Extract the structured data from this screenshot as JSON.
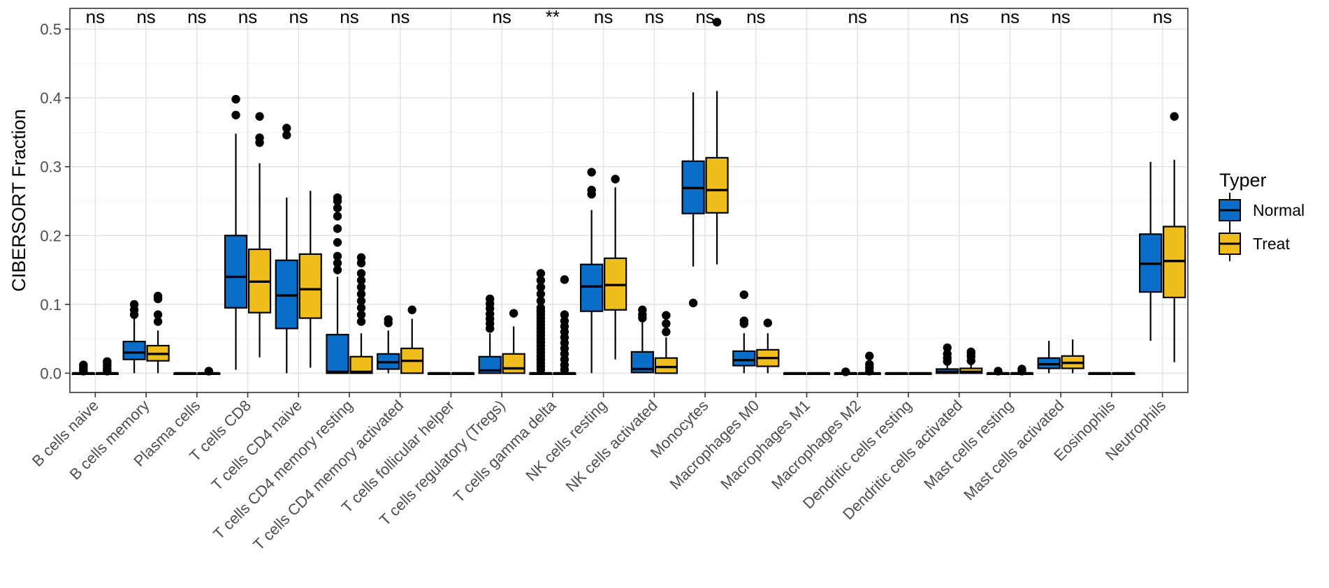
{
  "chart_data": {
    "type": "box",
    "title": "",
    "xlabel": "",
    "ylabel": "CIBERSORT Fraction",
    "ylim": [
      -0.028,
      0.53
    ],
    "yticks": [
      0.0,
      0.1,
      0.2,
      0.3,
      0.4,
      0.5
    ],
    "ytick_labels": [
      "0.0",
      "0.1",
      "0.2",
      "0.3",
      "0.4",
      "0.5"
    ],
    "grid": true,
    "legend": {
      "title": "Typer",
      "position": "right",
      "entries": [
        {
          "name": "Normal",
          "color": "#0a6ec8"
        },
        {
          "name": "Treat",
          "color": "#efbe1c"
        }
      ]
    },
    "categories": [
      "B cells naive",
      "B cells memory",
      "Plasma cells",
      "T cells CD8",
      "T cells CD4 naive",
      "T cells CD4 memory resting",
      "T cells CD4 memory activated",
      "T cells follicular helper",
      "T cells regulatory (Tregs)",
      "T cells gamma delta",
      "NK cells resting",
      "NK cells activated",
      "Monocytes",
      "Macrophages M0",
      "Macrophages M1",
      "Macrophages M2",
      "Dendritic cells resting",
      "Dendritic cells activated",
      "Mast cells resting",
      "Mast cells activated",
      "Eosinophils",
      "Neutrophils"
    ],
    "significance": [
      "ns",
      "ns",
      "ns",
      "ns",
      "ns",
      "ns",
      "ns",
      "",
      "ns",
      "**",
      "ns",
      "ns",
      "ns",
      "ns",
      "",
      "ns",
      "",
      "ns",
      "ns",
      "ns",
      "",
      "ns"
    ],
    "series": [
      {
        "name": "Normal",
        "color": "#0a6ec8",
        "boxes": [
          {
            "q1": 0.0,
            "med": 0.0,
            "q3": 0.0,
            "lo": 0.0,
            "hi": 0.0,
            "out": [
              0.003,
              0.006,
              0.009,
              0.012
            ]
          },
          {
            "q1": 0.02,
            "med": 0.03,
            "q3": 0.046,
            "lo": 0.0,
            "hi": 0.08,
            "out": [
              0.085,
              0.092,
              0.1
            ]
          },
          {
            "q1": 0.0,
            "med": 0.0,
            "q3": 0.0,
            "lo": 0.0,
            "hi": 0.0,
            "out": []
          },
          {
            "q1": 0.095,
            "med": 0.14,
            "q3": 0.2,
            "lo": 0.005,
            "hi": 0.348,
            "out": [
              0.375,
              0.398
            ]
          },
          {
            "q1": 0.065,
            "med": 0.113,
            "q3": 0.164,
            "lo": 0.0,
            "hi": 0.255,
            "out": [
              0.346,
              0.356
            ]
          },
          {
            "q1": 0.0,
            "med": 0.002,
            "q3": 0.056,
            "lo": 0.0,
            "hi": 0.14,
            "out": [
              0.15,
              0.16,
              0.17,
              0.19,
              0.21,
              0.228,
              0.24,
              0.25,
              0.255
            ]
          },
          {
            "q1": 0.006,
            "med": 0.016,
            "q3": 0.028,
            "lo": 0.0,
            "hi": 0.062,
            "out": [
              0.073,
              0.078
            ]
          },
          {
            "q1": 0.0,
            "med": 0.0,
            "q3": 0.0,
            "lo": 0.0,
            "hi": 0.0,
            "out": []
          },
          {
            "q1": 0.0,
            "med": 0.004,
            "q3": 0.024,
            "lo": 0.0,
            "hi": 0.058,
            "out": [
              0.065,
              0.072,
              0.079,
              0.086,
              0.094,
              0.101,
              0.108
            ]
          },
          {
            "q1": 0.0,
            "med": 0.0,
            "q3": 0.0,
            "lo": 0.0,
            "hi": 0.0,
            "out": [
              0.005,
              0.01,
              0.015,
              0.02,
              0.025,
              0.03,
              0.035,
              0.04,
              0.045,
              0.05,
              0.055,
              0.06,
              0.065,
              0.07,
              0.075,
              0.08,
              0.085,
              0.09,
              0.095,
              0.105,
              0.115,
              0.125,
              0.135,
              0.145
            ]
          },
          {
            "q1": 0.09,
            "med": 0.126,
            "q3": 0.158,
            "lo": 0.0,
            "hi": 0.237,
            "out": [
              0.26,
              0.266,
              0.292
            ]
          },
          {
            "q1": 0.001,
            "med": 0.006,
            "q3": 0.031,
            "lo": 0.0,
            "hi": 0.076,
            "out": [
              0.08,
              0.085,
              0.092
            ]
          },
          {
            "q1": 0.232,
            "med": 0.269,
            "q3": 0.308,
            "lo": 0.155,
            "hi": 0.408,
            "out": [
              0.102
            ]
          },
          {
            "q1": 0.011,
            "med": 0.019,
            "q3": 0.032,
            "lo": 0.0,
            "hi": 0.058,
            "out": [
              0.072,
              0.076,
              0.114
            ]
          },
          {
            "q1": 0.0,
            "med": 0.0,
            "q3": 0.0,
            "lo": 0.0,
            "hi": 0.0,
            "out": []
          },
          {
            "q1": 0.0,
            "med": 0.0,
            "q3": 0.0,
            "lo": 0.0,
            "hi": 0.0,
            "out": [
              0.002
            ]
          },
          {
            "q1": 0.0,
            "med": 0.0,
            "q3": 0.0,
            "lo": 0.0,
            "hi": 0.0,
            "out": []
          },
          {
            "q1": 0.0,
            "med": 0.002,
            "q3": 0.006,
            "lo": 0.0,
            "hi": 0.013,
            "out": [
              0.017,
              0.022,
              0.028,
              0.037
            ]
          },
          {
            "q1": 0.0,
            "med": 0.0,
            "q3": 0.0,
            "lo": 0.0,
            "hi": 0.0,
            "out": [
              0.003
            ]
          },
          {
            "q1": 0.007,
            "med": 0.013,
            "q3": 0.022,
            "lo": 0.0,
            "hi": 0.047,
            "out": []
          },
          {
            "q1": 0.0,
            "med": 0.0,
            "q3": 0.0,
            "lo": 0.0,
            "hi": 0.0,
            "out": []
          },
          {
            "q1": 0.118,
            "med": 0.159,
            "q3": 0.202,
            "lo": 0.047,
            "hi": 0.307,
            "out": []
          }
        ]
      },
      {
        "name": "Treat",
        "color": "#efbe1c",
        "boxes": [
          {
            "q1": 0.0,
            "med": 0.0,
            "q3": 0.0,
            "lo": 0.0,
            "hi": 0.0,
            "out": [
              0.003,
              0.006,
              0.01,
              0.014,
              0.017
            ]
          },
          {
            "q1": 0.018,
            "med": 0.028,
            "q3": 0.04,
            "lo": 0.0,
            "hi": 0.062,
            "out": [
              0.075,
              0.085,
              0.108,
              0.112
            ]
          },
          {
            "q1": 0.0,
            "med": 0.0,
            "q3": 0.0,
            "lo": 0.0,
            "hi": 0.0,
            "out": [
              0.003
            ]
          },
          {
            "q1": 0.088,
            "med": 0.133,
            "q3": 0.18,
            "lo": 0.023,
            "hi": 0.305,
            "out": [
              0.335,
              0.342,
              0.373
            ]
          },
          {
            "q1": 0.08,
            "med": 0.122,
            "q3": 0.173,
            "lo": 0.008,
            "hi": 0.265,
            "out": []
          },
          {
            "q1": 0.0,
            "med": 0.002,
            "q3": 0.024,
            "lo": 0.0,
            "hi": 0.058,
            "out": [
              0.075,
              0.085,
              0.095,
              0.105,
              0.115,
              0.125,
              0.135,
              0.145,
              0.16,
              0.168
            ]
          },
          {
            "q1": 0.0,
            "med": 0.018,
            "q3": 0.036,
            "lo": 0.0,
            "hi": 0.079,
            "out": [
              0.092
            ]
          },
          {
            "q1": 0.0,
            "med": 0.0,
            "q3": 0.0,
            "lo": 0.0,
            "hi": 0.0,
            "out": []
          },
          {
            "q1": 0.0,
            "med": 0.007,
            "q3": 0.028,
            "lo": 0.0,
            "hi": 0.068,
            "out": [
              0.087
            ]
          },
          {
            "q1": 0.0,
            "med": 0.0,
            "q3": 0.0,
            "lo": 0.0,
            "hi": 0.0,
            "out": [
              0.005,
              0.012,
              0.02,
              0.028,
              0.036,
              0.044,
              0.052,
              0.06,
              0.068,
              0.076,
              0.085,
              0.136
            ]
          },
          {
            "q1": 0.092,
            "med": 0.128,
            "q3": 0.167,
            "lo": 0.02,
            "hi": 0.27,
            "out": [
              0.282
            ]
          },
          {
            "q1": 0.0,
            "med": 0.009,
            "q3": 0.022,
            "lo": 0.0,
            "hi": 0.052,
            "out": [
              0.06,
              0.072,
              0.084
            ]
          },
          {
            "q1": 0.233,
            "med": 0.266,
            "q3": 0.313,
            "lo": 0.158,
            "hi": 0.41,
            "out": [
              0.51
            ]
          },
          {
            "q1": 0.01,
            "med": 0.022,
            "q3": 0.034,
            "lo": 0.0,
            "hi": 0.058,
            "out": [
              0.073
            ]
          },
          {
            "q1": 0.0,
            "med": 0.0,
            "q3": 0.0,
            "lo": 0.0,
            "hi": 0.0,
            "out": []
          },
          {
            "q1": 0.0,
            "med": 0.0,
            "q3": 0.0,
            "lo": 0.0,
            "hi": 0.0,
            "out": [
              0.003,
              0.008,
              0.013,
              0.025
            ]
          },
          {
            "q1": 0.0,
            "med": 0.0,
            "q3": 0.0,
            "lo": 0.0,
            "hi": 0.0,
            "out": []
          },
          {
            "q1": 0.0,
            "med": 0.002,
            "q3": 0.007,
            "lo": 0.0,
            "hi": 0.014,
            "out": [
              0.018,
              0.024,
              0.028,
              0.031
            ]
          },
          {
            "q1": 0.0,
            "med": 0.0,
            "q3": 0.0,
            "lo": 0.0,
            "hi": 0.0,
            "out": [
              0.003,
              0.006
            ]
          },
          {
            "q1": 0.007,
            "med": 0.015,
            "q3": 0.025,
            "lo": 0.0,
            "hi": 0.049,
            "out": []
          },
          {
            "q1": 0.0,
            "med": 0.0,
            "q3": 0.0,
            "lo": 0.0,
            "hi": 0.0,
            "out": []
          },
          {
            "q1": 0.11,
            "med": 0.163,
            "q3": 0.213,
            "lo": 0.016,
            "hi": 0.31,
            "out": [
              0.373
            ]
          }
        ]
      }
    ]
  }
}
